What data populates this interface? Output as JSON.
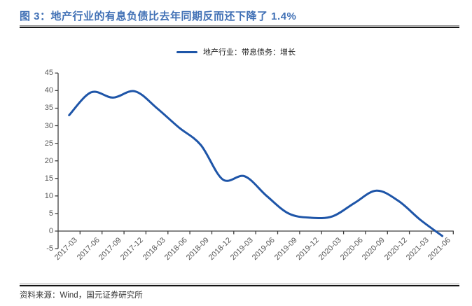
{
  "header": {
    "title": "图 3：地产行业的有息负债比去年同期反而还下降了 1.4%"
  },
  "legend": {
    "label": "地产行业：带息债务：增长"
  },
  "footer": {
    "source_label": "资料来源：Wind，国元证券研究所"
  },
  "colors": {
    "line": "#1E55A8",
    "title": "#4070B5",
    "axis": "#3F3F3F",
    "tick_label": "#595959"
  },
  "chart_data": {
    "type": "line",
    "title": "地产行业的有息负债比去年同期反而还下降了 1.4%",
    "categories": [
      "2017-03",
      "2017-06",
      "2017-09",
      "2017-12",
      "2018-03",
      "2018-06",
      "2018-09",
      "2018-12",
      "2019-03",
      "2019-06",
      "2019-09",
      "2019-12",
      "2020-03",
      "2020-06",
      "2020-09",
      "2020-12",
      "2021-03",
      "2021-06"
    ],
    "series": [
      {
        "name": "地产行业：带息债务：增长",
        "values": [
          33,
          39.5,
          38,
          39.8,
          35,
          29.5,
          24.5,
          14.7,
          15.6,
          10,
          5,
          3.8,
          4.2,
          8,
          11.5,
          8.6,
          3.2,
          -1.4
        ]
      }
    ],
    "xlabel": "",
    "ylabel": "",
    "ylim": [
      -5,
      45
    ],
    "ytick_step": 5,
    "grid": false,
    "legend_position": "top-center",
    "x_label_rotation": -45
  }
}
